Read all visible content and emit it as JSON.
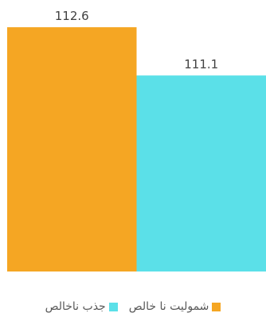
{
  "chart_data": {
    "type": "bar",
    "ylim": [
      105,
      113
    ],
    "grid": false,
    "legend_position": "bottom",
    "series": [
      {
        "name": "شمولیت نا خالص",
        "values": [
          112.6
        ],
        "color": "#F5A623",
        "data_label": "112.6"
      },
      {
        "name": "جذب ناخالص",
        "values": [
          111.1
        ],
        "color": "#5BE0E8",
        "data_label": "111.1"
      }
    ]
  }
}
